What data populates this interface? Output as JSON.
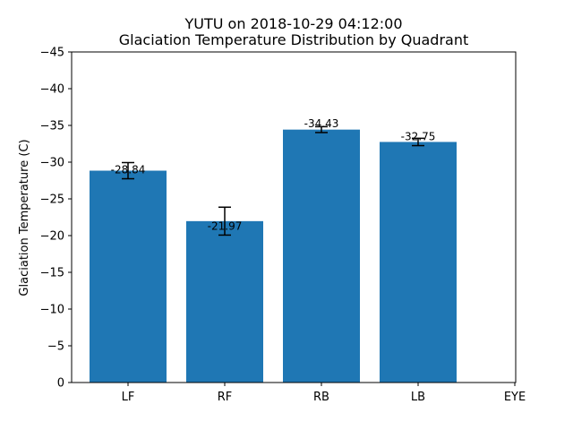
{
  "chart_data": {
    "type": "bar",
    "title": "YUTU on 2018-10-29 04:12:00",
    "subtitle": "Glaciation Temperature Distribution by Quadrant",
    "xlabel": "",
    "ylabel": "Glaciation Temperature (C)",
    "categories": [
      "LF",
      "RF",
      "RB",
      "LB",
      "EYE"
    ],
    "values": [
      -28.84,
      -21.97,
      -34.43,
      -32.75,
      null
    ],
    "value_labels": [
      "-28.84",
      "-21.97",
      "-34.43",
      "-32.75",
      ""
    ],
    "error": [
      1.1,
      1.9,
      0.4,
      0.5,
      null
    ],
    "ylim": [
      0,
      -45
    ],
    "y_inverted": true,
    "yticks": [
      0,
      -5,
      -10,
      -15,
      -20,
      -25,
      -30,
      -35,
      -40,
      -45
    ],
    "ytick_labels": [
      "0",
      "−5",
      "−10",
      "−15",
      "−20",
      "−25",
      "−30",
      "−35",
      "−40",
      "−45"
    ],
    "bar_color": "#1f77b4",
    "grid": false,
    "legend": "none"
  }
}
